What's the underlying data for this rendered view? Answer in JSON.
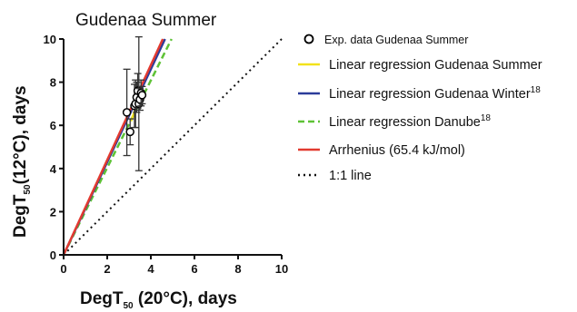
{
  "chart_data": {
    "type": "scatter",
    "title": "Gudenaa Summer",
    "xlabel": {
      "main": "DegT",
      "sub": "50",
      "rest": " (20°C), days"
    },
    "ylabel": {
      "main": "DegT",
      "sub": "50",
      "rest": "(12°C), days"
    },
    "xlim": [
      0,
      10
    ],
    "ylim": [
      0,
      10
    ],
    "xticks": [
      "0",
      "2",
      "4",
      "6",
      "8",
      "10"
    ],
    "yticks": [
      "0",
      "2",
      "4",
      "6",
      "8",
      "10"
    ],
    "grid": false,
    "legend_position": "right",
    "series": [
      {
        "kind": "points",
        "color": "#000000",
        "label": {
          "text": "Exp. data Gudenaa Summer",
          "sup": ""
        },
        "x": [
          2.9,
          3.05,
          3.25,
          3.3,
          3.35,
          3.4,
          3.45,
          3.5,
          3.55,
          3.6
        ],
        "y": [
          6.6,
          5.7,
          6.9,
          7.0,
          7.3,
          7.6,
          7.0,
          7.2,
          7.5,
          7.4
        ],
        "err": [
          2.0,
          0.6,
          1.0,
          1.1,
          0.7,
          0.8,
          3.1,
          0.5,
          0.6,
          0.4
        ]
      },
      {
        "kind": "line",
        "color": "#f2e21a",
        "dash": "",
        "label": {
          "text": "Linear regression Gudenaa Summer",
          "sup": ""
        },
        "x": [
          3.1,
          3.55
        ],
        "y": [
          6.2,
          7.5
        ]
      },
      {
        "kind": "line",
        "color": "#2b3c9a",
        "dash": "",
        "label": {
          "text": "Linear regression Gudenaa Winter",
          "sup": "18"
        },
        "x": [
          0,
          4.65
        ],
        "y": [
          0,
          10
        ]
      },
      {
        "kind": "line",
        "color": "#5ec236",
        "dash": "7,4",
        "label": {
          "text": "Linear regression Danube",
          "sup": "18"
        },
        "x": [
          0,
          4.95
        ],
        "y": [
          0,
          10
        ]
      },
      {
        "kind": "line",
        "color": "#e23a30",
        "dash": "",
        "label": {
          "text": "Arrhenius (65.4 kJ/mol)",
          "sup": ""
        },
        "x": [
          0,
          4.55
        ],
        "y": [
          0,
          10
        ]
      },
      {
        "kind": "line",
        "color": "#111111",
        "dash": "2,4",
        "label": {
          "text": "1:1 line",
          "sup": ""
        },
        "x": [
          0,
          10
        ],
        "y": [
          0,
          10
        ]
      }
    ]
  }
}
